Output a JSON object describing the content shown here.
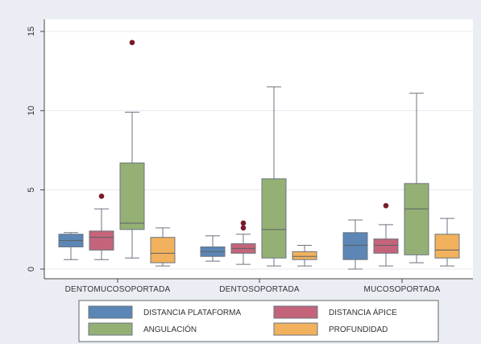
{
  "chart_data": {
    "type": "box",
    "categories": [
      "DENTOMUCOSOPORTADA",
      "DENTOSOPORTADA",
      "MUCOSOPORTADA"
    ],
    "ylim": [
      0,
      16
    ],
    "yticks": [
      0,
      5,
      10,
      15
    ],
    "grid": true,
    "legend_position": "bottom",
    "series": [
      {
        "name": "DISTANCIA PLATAFORMA",
        "color": "#5b86b5",
        "boxes": [
          {
            "min": 0.6,
            "q1": 1.4,
            "median": 1.8,
            "q3": 2.2,
            "max": 2.3,
            "outliers": []
          },
          {
            "min": 0.5,
            "q1": 0.8,
            "median": 1.1,
            "q3": 1.4,
            "max": 2.1,
            "outliers": []
          },
          {
            "min": 0.0,
            "q1": 0.6,
            "median": 1.5,
            "q3": 2.3,
            "max": 3.1,
            "outliers": []
          }
        ]
      },
      {
        "name": "DISTANCIA ÁPICE",
        "color": "#c4647a",
        "boxes": [
          {
            "min": 0.6,
            "q1": 1.2,
            "median": 2.0,
            "q3": 2.4,
            "max": 3.8,
            "outliers": [
              4.6
            ]
          },
          {
            "min": 0.3,
            "q1": 1.0,
            "median": 1.3,
            "q3": 1.6,
            "max": 2.2,
            "outliers": [
              2.6,
              2.9
            ]
          },
          {
            "min": 0.2,
            "q1": 1.0,
            "median": 1.5,
            "q3": 1.9,
            "max": 2.8,
            "outliers": [
              4.0
            ]
          }
        ]
      },
      {
        "name": "ANGULACIÓN",
        "color": "#95b074",
        "boxes": [
          {
            "min": 0.7,
            "q1": 2.5,
            "median": 2.9,
            "q3": 6.7,
            "max": 9.9,
            "outliers": [
              14.3
            ]
          },
          {
            "min": 0.2,
            "q1": 0.7,
            "median": 2.5,
            "q3": 5.7,
            "max": 11.5,
            "outliers": []
          },
          {
            "min": 0.4,
            "q1": 0.9,
            "median": 3.8,
            "q3": 5.4,
            "max": 11.1,
            "outliers": []
          }
        ]
      },
      {
        "name": "PROFUNDIDAD",
        "color": "#f2b15c",
        "boxes": [
          {
            "min": 0.2,
            "q1": 0.4,
            "median": 1.0,
            "q3": 2.0,
            "max": 2.6,
            "outliers": []
          },
          {
            "min": 0.2,
            "q1": 0.6,
            "median": 0.8,
            "q3": 1.1,
            "max": 1.5,
            "outliers": []
          },
          {
            "min": 0.2,
            "q1": 0.7,
            "median": 1.2,
            "q3": 2.2,
            "max": 3.2,
            "outliers": []
          }
        ]
      }
    ],
    "outlier_color": "#7a1a2a"
  }
}
